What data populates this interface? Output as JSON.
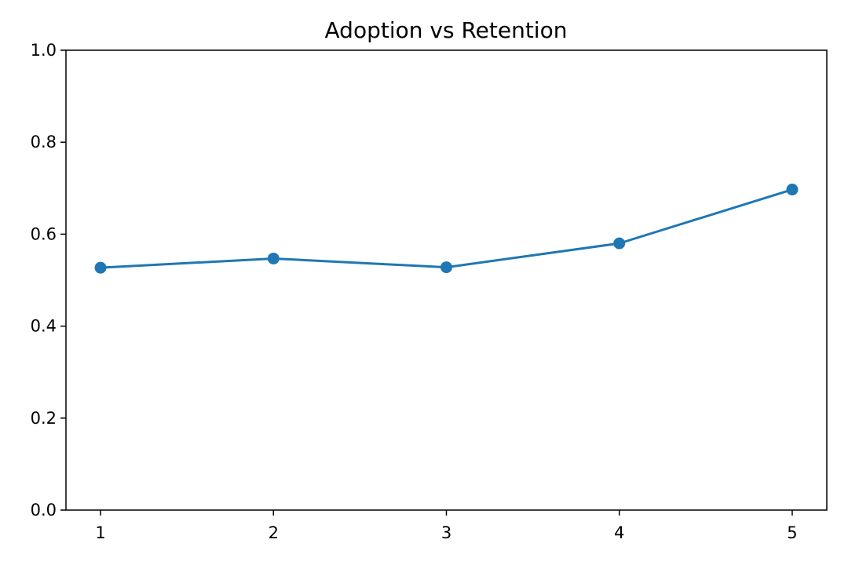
{
  "chart_data": {
    "type": "line",
    "title": "Adoption vs Retention",
    "xlabel": "",
    "ylabel": "",
    "x": [
      1,
      2,
      3,
      4,
      5
    ],
    "series": [
      {
        "values": [
          0.527,
          0.547,
          0.528,
          0.58,
          0.697
        ]
      }
    ],
    "xlim": [
      0.8,
      5.2
    ],
    "ylim": [
      0.0,
      1.0
    ],
    "xticks": [
      "1",
      "2",
      "3",
      "4",
      "5"
    ],
    "yticks": [
      "0.0",
      "0.2",
      "0.4",
      "0.6",
      "0.8",
      "1.0"
    ],
    "ytick_values": [
      0.0,
      0.2,
      0.4,
      0.6,
      0.8,
      1.0
    ],
    "grid": false,
    "markers": true,
    "colors": {
      "series": "#1f77b4",
      "axes": "#000000",
      "background": "#ffffff"
    }
  }
}
